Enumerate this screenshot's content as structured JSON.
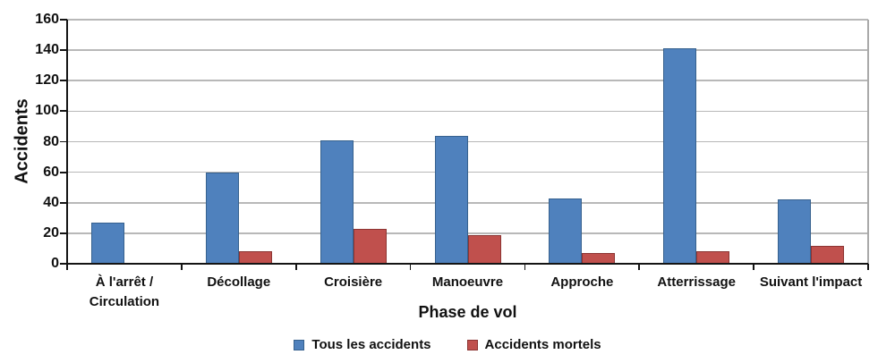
{
  "chart_data": {
    "type": "bar",
    "xlabel": "Phase de vol",
    "ylabel": "Accidents",
    "categories": [
      "À l'arrêt /\nCirculation",
      "Décollage",
      "Croisière",
      "Manoeuvre",
      "Approche",
      "Atterrissage",
      "Suivant l'impact"
    ],
    "series": [
      {
        "name": "Tous les accidents",
        "color": "#4F81BD",
        "border": "#36618E",
        "values": [
          27,
          60,
          81,
          84,
          43,
          141,
          42
        ]
      },
      {
        "name": "Accidents mortels",
        "color": "#C0504D",
        "border": "#8C3432",
        "values": [
          0,
          8,
          23,
          19,
          7,
          8,
          12
        ]
      }
    ],
    "ylim": [
      0,
      160
    ],
    "ytick_step": 20,
    "yticks": [
      0,
      20,
      40,
      60,
      80,
      100,
      120,
      140,
      160
    ],
    "grid": true,
    "legend_position": "bottom"
  },
  "colors": {
    "gridline": "#b8b8b8",
    "axis": "#141414",
    "plot_border": "#a9a9a9",
    "background": "#ffffff"
  }
}
